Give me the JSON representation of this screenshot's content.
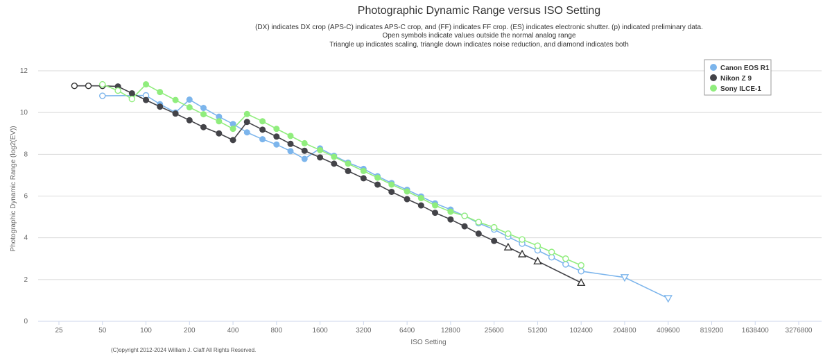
{
  "chart_data": {
    "type": "line",
    "title": "Photographic Dynamic Range versus ISO Setting",
    "subtitle_lines": [
      "(DX) indicates DX crop (APS-C) indicates APS-C crop, and (FF) indicates FF crop. (ES) indicates electronic shutter. (p) indicated preliminary data.",
      "Open symbols indicate values outside the normal analog range",
      "Triangle up indicates scaling, triangle down indicates noise reduction, and diamond indicates both"
    ],
    "xlabel": "ISO Setting",
    "ylabel": "Photographic Dynamic Range (log2(EV))",
    "x_scale": "log2",
    "xlim": [
      25,
      3276800
    ],
    "ylim": [
      0,
      12
    ],
    "x_ticks": [
      25,
      50,
      100,
      200,
      400,
      800,
      1600,
      3200,
      6400,
      12800,
      25600,
      51200,
      102400,
      204800,
      409600,
      819200,
      1638400,
      3276800
    ],
    "y_ticks": [
      0,
      2,
      4,
      6,
      8,
      10,
      12
    ],
    "grid": "horizontal",
    "legend_position": "top-right",
    "credit": "(C)opyright 2012-2024 William J. Claff All Rights Reserved.",
    "series": [
      {
        "name": "Canon EOS R1",
        "color": "#7cb5ec",
        "points": [
          {
            "x": 50,
            "y": 10.8,
            "m": "open"
          },
          {
            "x": 100,
            "y": 10.82,
            "m": "open"
          },
          {
            "x": 125,
            "y": 10.4,
            "m": "dot"
          },
          {
            "x": 160,
            "y": 10.0,
            "m": "dot"
          },
          {
            "x": 200,
            "y": 10.62,
            "m": "dot"
          },
          {
            "x": 250,
            "y": 10.22,
            "m": "dot"
          },
          {
            "x": 320,
            "y": 9.8,
            "m": "dot"
          },
          {
            "x": 400,
            "y": 9.45,
            "m": "dot"
          },
          {
            "x": 500,
            "y": 9.05,
            "m": "dot"
          },
          {
            "x": 640,
            "y": 8.72,
            "m": "dot"
          },
          {
            "x": 800,
            "y": 8.47,
            "m": "dot"
          },
          {
            "x": 1000,
            "y": 8.15,
            "m": "dot"
          },
          {
            "x": 1250,
            "y": 7.78,
            "m": "dot"
          },
          {
            "x": 1600,
            "y": 8.28,
            "m": "dot"
          },
          {
            "x": 2000,
            "y": 7.93,
            "m": "dot"
          },
          {
            "x": 2500,
            "y": 7.6,
            "m": "dot"
          },
          {
            "x": 3200,
            "y": 7.3,
            "m": "dot"
          },
          {
            "x": 4000,
            "y": 6.95,
            "m": "dot"
          },
          {
            "x": 5000,
            "y": 6.62,
            "m": "dot"
          },
          {
            "x": 6400,
            "y": 6.3,
            "m": "dot"
          },
          {
            "x": 8000,
            "y": 5.98,
            "m": "dot"
          },
          {
            "x": 10000,
            "y": 5.65,
            "m": "dot"
          },
          {
            "x": 12800,
            "y": 5.35,
            "m": "dot"
          },
          {
            "x": 16000,
            "y": 5.05,
            "m": "open"
          },
          {
            "x": 20000,
            "y": 4.7,
            "m": "open"
          },
          {
            "x": 25600,
            "y": 4.4,
            "m": "open"
          },
          {
            "x": 32000,
            "y": 4.05,
            "m": "open"
          },
          {
            "x": 40000,
            "y": 3.72,
            "m": "open"
          },
          {
            "x": 51200,
            "y": 3.4,
            "m": "open"
          },
          {
            "x": 64000,
            "y": 3.07,
            "m": "open"
          },
          {
            "x": 80000,
            "y": 2.73,
            "m": "open"
          },
          {
            "x": 102400,
            "y": 2.4,
            "m": "open"
          },
          {
            "x": 204800,
            "y": 2.1,
            "m": "tri-down"
          },
          {
            "x": 409600,
            "y": 1.1,
            "m": "tri-down"
          }
        ]
      },
      {
        "name": "Nikon Z 9",
        "color": "#434348",
        "points": [
          {
            "x": 32,
            "y": 11.28,
            "m": "open"
          },
          {
            "x": 40,
            "y": 11.28,
            "m": "open"
          },
          {
            "x": 50,
            "y": 11.28,
            "m": "open"
          },
          {
            "x": 64,
            "y": 11.25,
            "m": "dot"
          },
          {
            "x": 80,
            "y": 10.92,
            "m": "dot"
          },
          {
            "x": 100,
            "y": 10.6,
            "m": "dot"
          },
          {
            "x": 125,
            "y": 10.28,
            "m": "dot"
          },
          {
            "x": 160,
            "y": 9.95,
            "m": "dot"
          },
          {
            "x": 200,
            "y": 9.63,
            "m": "dot"
          },
          {
            "x": 250,
            "y": 9.3,
            "m": "dot"
          },
          {
            "x": 320,
            "y": 9.0,
            "m": "dot"
          },
          {
            "x": 400,
            "y": 8.68,
            "m": "dot"
          },
          {
            "x": 500,
            "y": 9.55,
            "m": "dot"
          },
          {
            "x": 640,
            "y": 9.18,
            "m": "dot"
          },
          {
            "x": 800,
            "y": 8.85,
            "m": "dot"
          },
          {
            "x": 1000,
            "y": 8.5,
            "m": "dot"
          },
          {
            "x": 1250,
            "y": 8.17,
            "m": "dot"
          },
          {
            "x": 1600,
            "y": 7.85,
            "m": "dot"
          },
          {
            "x": 2000,
            "y": 7.55,
            "m": "dot"
          },
          {
            "x": 2500,
            "y": 7.2,
            "m": "dot"
          },
          {
            "x": 3200,
            "y": 6.85,
            "m": "dot"
          },
          {
            "x": 4000,
            "y": 6.55,
            "m": "dot"
          },
          {
            "x": 5000,
            "y": 6.2,
            "m": "dot"
          },
          {
            "x": 6400,
            "y": 5.85,
            "m": "dot"
          },
          {
            "x": 8000,
            "y": 5.55,
            "m": "dot"
          },
          {
            "x": 10000,
            "y": 5.2,
            "m": "dot"
          },
          {
            "x": 12800,
            "y": 4.88,
            "m": "dot"
          },
          {
            "x": 16000,
            "y": 4.55,
            "m": "dot"
          },
          {
            "x": 20000,
            "y": 4.2,
            "m": "dot"
          },
          {
            "x": 25600,
            "y": 3.85,
            "m": "dot"
          },
          {
            "x": 32000,
            "y": 3.55,
            "m": "tri-up"
          },
          {
            "x": 40000,
            "y": 3.22,
            "m": "tri-up"
          },
          {
            "x": 51200,
            "y": 2.88,
            "m": "tri-up"
          },
          {
            "x": 102400,
            "y": 1.85,
            "m": "tri-up"
          }
        ]
      },
      {
        "name": "Sony ILCE-1",
        "color": "#90ed7d",
        "points": [
          {
            "x": 50,
            "y": 11.35,
            "m": "open"
          },
          {
            "x": 64,
            "y": 11.05,
            "m": "open"
          },
          {
            "x": 80,
            "y": 10.65,
            "m": "open"
          },
          {
            "x": 100,
            "y": 11.35,
            "m": "dot"
          },
          {
            "x": 125,
            "y": 10.98,
            "m": "dot"
          },
          {
            "x": 160,
            "y": 10.6,
            "m": "dot"
          },
          {
            "x": 200,
            "y": 10.25,
            "m": "dot"
          },
          {
            "x": 250,
            "y": 9.92,
            "m": "dot"
          },
          {
            "x": 320,
            "y": 9.58,
            "m": "dot"
          },
          {
            "x": 400,
            "y": 9.22,
            "m": "dot"
          },
          {
            "x": 500,
            "y": 9.93,
            "m": "dot"
          },
          {
            "x": 640,
            "y": 9.58,
            "m": "dot"
          },
          {
            "x": 800,
            "y": 9.22,
            "m": "dot"
          },
          {
            "x": 1000,
            "y": 8.88,
            "m": "dot"
          },
          {
            "x": 1250,
            "y": 8.53,
            "m": "dot"
          },
          {
            "x": 1600,
            "y": 8.2,
            "m": "dot"
          },
          {
            "x": 2000,
            "y": 7.88,
            "m": "dot"
          },
          {
            "x": 2500,
            "y": 7.55,
            "m": "dot"
          },
          {
            "x": 3200,
            "y": 7.2,
            "m": "dot"
          },
          {
            "x": 4000,
            "y": 6.88,
            "m": "dot"
          },
          {
            "x": 5000,
            "y": 6.55,
            "m": "dot"
          },
          {
            "x": 6400,
            "y": 6.22,
            "m": "dot"
          },
          {
            "x": 8000,
            "y": 5.9,
            "m": "dot"
          },
          {
            "x": 10000,
            "y": 5.55,
            "m": "dot"
          },
          {
            "x": 12800,
            "y": 5.25,
            "m": "dot"
          },
          {
            "x": 16000,
            "y": 5.05,
            "m": "open"
          },
          {
            "x": 20000,
            "y": 4.75,
            "m": "open"
          },
          {
            "x": 25600,
            "y": 4.5,
            "m": "open"
          },
          {
            "x": 32000,
            "y": 4.2,
            "m": "open"
          },
          {
            "x": 40000,
            "y": 3.92,
            "m": "open"
          },
          {
            "x": 51200,
            "y": 3.62,
            "m": "open"
          },
          {
            "x": 64000,
            "y": 3.32,
            "m": "open"
          },
          {
            "x": 80000,
            "y": 3.0,
            "m": "open"
          },
          {
            "x": 102400,
            "y": 2.68,
            "m": "open"
          }
        ]
      }
    ]
  }
}
